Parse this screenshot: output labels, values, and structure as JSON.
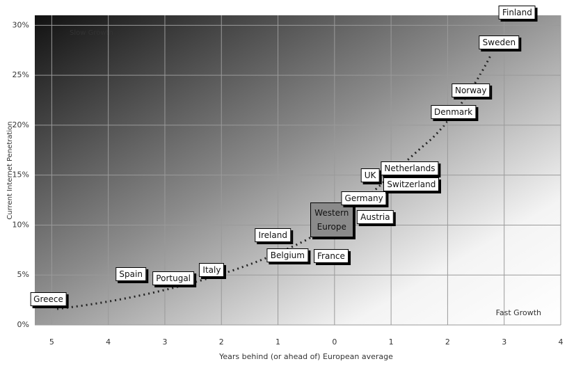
{
  "chart_data": {
    "type": "scatter",
    "xlabel": "Years behind (or ahead of) European average",
    "ylabel": "Current Internet Penetration",
    "annotations": [
      "Slow Growth",
      "Fast Growth"
    ],
    "labels": [
      "Greece",
      "Spain",
      "Portugal",
      "Italy",
      "Ireland",
      "Belgium",
      "France",
      "Western Europe",
      "Austria",
      "Germany",
      "Switzerland",
      "UK",
      "Netherlands",
      "Denmark",
      "Norway",
      "Sweden",
      "Finland"
    ],
    "x": [
      -5.06,
      -3.6,
      -2.85,
      -2.17,
      -1.09,
      -0.83,
      -0.06,
      -0.05,
      0.72,
      0.52,
      1.36,
      0.63,
      1.33,
      2.1,
      2.41,
      2.91,
      3.23
    ],
    "values": [
      2.6,
      5.1,
      4.7,
      5.5,
      9.0,
      7.0,
      6.9,
      10.5,
      10.8,
      12.7,
      14.1,
      15.0,
      15.7,
      21.3,
      23.5,
      28.3,
      31.3
    ],
    "point_colors": [
      "#ffffff",
      "#ffffff",
      "#ffffff",
      "#ffffff",
      "#ffffff",
      "#ffffff",
      "#ffffff",
      "#8a8a8a",
      "#ffffff",
      "#ffffff",
      "#ffffff",
      "#ffffff",
      "#ffffff",
      "#ffffff",
      "#ffffff",
      "#ffffff",
      "#ffffff"
    ],
    "xlim": [
      -5.3,
      4
    ],
    "ylim": [
      0,
      31
    ],
    "xticks": [
      {
        "value": -5,
        "label": "5"
      },
      {
        "value": -4,
        "label": "4"
      },
      {
        "value": -3,
        "label": "3"
      },
      {
        "value": -2,
        "label": "2"
      },
      {
        "value": -1,
        "label": "1"
      },
      0,
      1,
      2,
      3,
      4
    ],
    "yticks": [
      {
        "value": 0,
        "label": "0%"
      },
      {
        "value": 5,
        "label": "5%"
      },
      {
        "value": 10,
        "label": "10%"
      },
      {
        "value": 15,
        "label": "15%"
      },
      {
        "value": 20,
        "label": "20%"
      },
      {
        "value": 25,
        "label": "25%"
      },
      {
        "value": 30,
        "label": "30%"
      }
    ],
    "grid": true
  }
}
